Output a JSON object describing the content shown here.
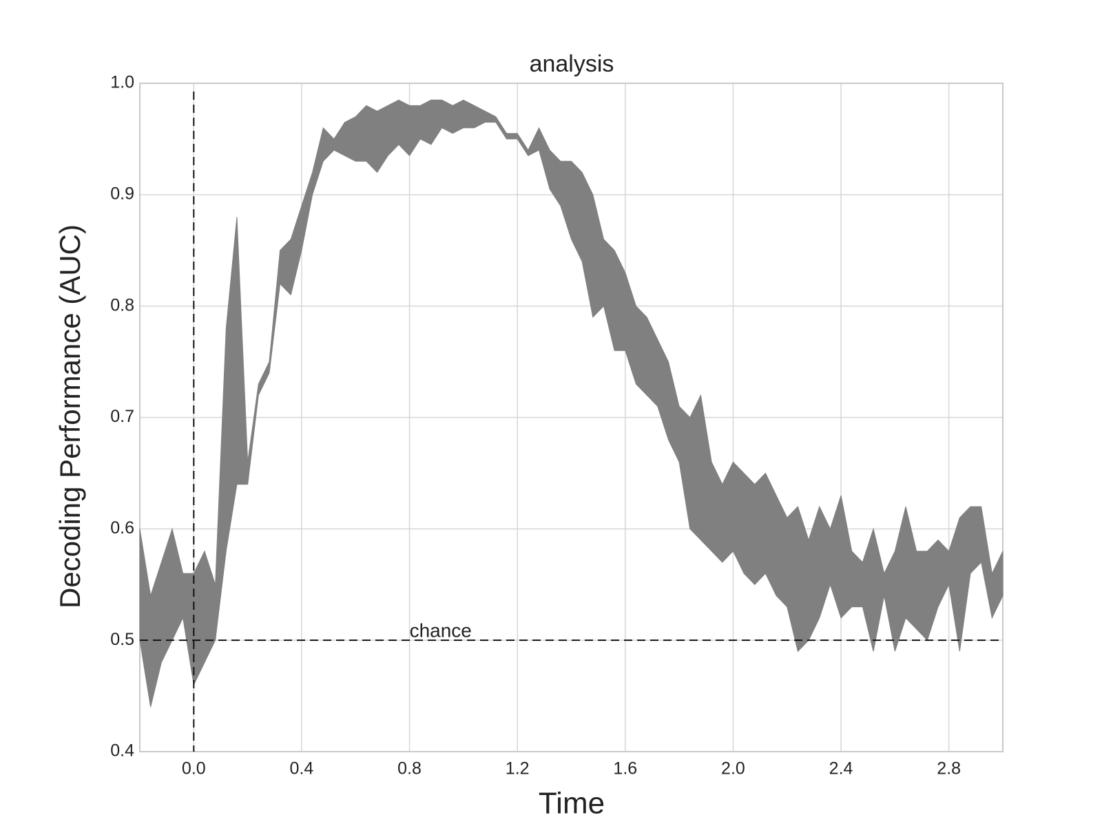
{
  "chart_data": {
    "type": "band",
    "title": "analysis",
    "xlabel": "Time",
    "ylabel": "Decoding Performance (AUC)",
    "color": "#808080",
    "grid": true,
    "xlim": [
      -0.2,
      3.0
    ],
    "ylim": [
      0.4,
      1.0
    ],
    "xticks": [
      {
        "value": 0,
        "label": "0.0"
      },
      0.4,
      0.8,
      1.2,
      1.6,
      {
        "value": 2,
        "label": "2.0"
      },
      2.4,
      2.8
    ],
    "yticks": [
      0.4,
      0.5,
      0.6,
      0.7,
      0.8,
      0.9,
      {
        "value": 1,
        "label": "1.0"
      }
    ],
    "hlines": [
      {
        "value": 0.5,
        "label": "chance"
      }
    ],
    "vlines": [
      0
    ],
    "x": [
      -0.2,
      -0.16,
      -0.12,
      -0.08,
      -0.04,
      0,
      0.04,
      0.08,
      0.12,
      0.16,
      0.2,
      0.24,
      0.28,
      0.32,
      0.36,
      0.4,
      0.44,
      0.48,
      0.52,
      0.56,
      0.6,
      0.64,
      0.68,
      0.72,
      0.76,
      0.8,
      0.84,
      0.88,
      0.92,
      0.96,
      1.0,
      1.04,
      1.08,
      1.12,
      1.16,
      1.2,
      1.24,
      1.28,
      1.32,
      1.36,
      1.4,
      1.44,
      1.48,
      1.52,
      1.56,
      1.6,
      1.64,
      1.68,
      1.72,
      1.76,
      1.8,
      1.84,
      1.88,
      1.92,
      1.96,
      2.0,
      2.04,
      2.08,
      2.12,
      2.16,
      2.2,
      2.24,
      2.28,
      2.32,
      2.36,
      2.4,
      2.44,
      2.48,
      2.52,
      2.56,
      2.6,
      2.64,
      2.68,
      2.72,
      2.76,
      2.8,
      2.84,
      2.88,
      2.92,
      2.96,
      3.0
    ],
    "lower": [
      0.5,
      0.44,
      0.48,
      0.5,
      0.52,
      0.46,
      0.48,
      0.5,
      0.58,
      0.64,
      0.64,
      0.72,
      0.74,
      0.82,
      0.81,
      0.85,
      0.9,
      0.93,
      0.94,
      0.935,
      0.93,
      0.93,
      0.92,
      0.935,
      0.945,
      0.935,
      0.95,
      0.945,
      0.96,
      0.955,
      0.96,
      0.96,
      0.965,
      0.965,
      0.95,
      0.95,
      0.935,
      0.94,
      0.905,
      0.89,
      0.86,
      0.84,
      0.79,
      0.8,
      0.76,
      0.76,
      0.73,
      0.72,
      0.71,
      0.68,
      0.66,
      0.6,
      0.59,
      0.58,
      0.57,
      0.58,
      0.56,
      0.55,
      0.56,
      0.54,
      0.53,
      0.49,
      0.5,
      0.52,
      0.55,
      0.52,
      0.53,
      0.53,
      0.49,
      0.54,
      0.49,
      0.52,
      0.51,
      0.5,
      0.53,
      0.55,
      0.49,
      0.56,
      0.57,
      0.52,
      0.54
    ],
    "upper": [
      0.6,
      0.54,
      0.57,
      0.6,
      0.56,
      0.56,
      0.58,
      0.55,
      0.78,
      0.88,
      0.66,
      0.73,
      0.75,
      0.85,
      0.86,
      0.89,
      0.92,
      0.96,
      0.95,
      0.965,
      0.97,
      0.98,
      0.975,
      0.98,
      0.985,
      0.98,
      0.98,
      0.985,
      0.985,
      0.98,
      0.985,
      0.98,
      0.975,
      0.97,
      0.955,
      0.955,
      0.94,
      0.96,
      0.94,
      0.93,
      0.93,
      0.92,
      0.9,
      0.86,
      0.85,
      0.83,
      0.8,
      0.79,
      0.77,
      0.75,
      0.71,
      0.7,
      0.72,
      0.66,
      0.64,
      0.66,
      0.65,
      0.64,
      0.65,
      0.63,
      0.61,
      0.62,
      0.59,
      0.62,
      0.6,
      0.63,
      0.58,
      0.57,
      0.6,
      0.56,
      0.58,
      0.62,
      0.58,
      0.58,
      0.59,
      0.58,
      0.61,
      0.62,
      0.62,
      0.56,
      0.58
    ]
  }
}
